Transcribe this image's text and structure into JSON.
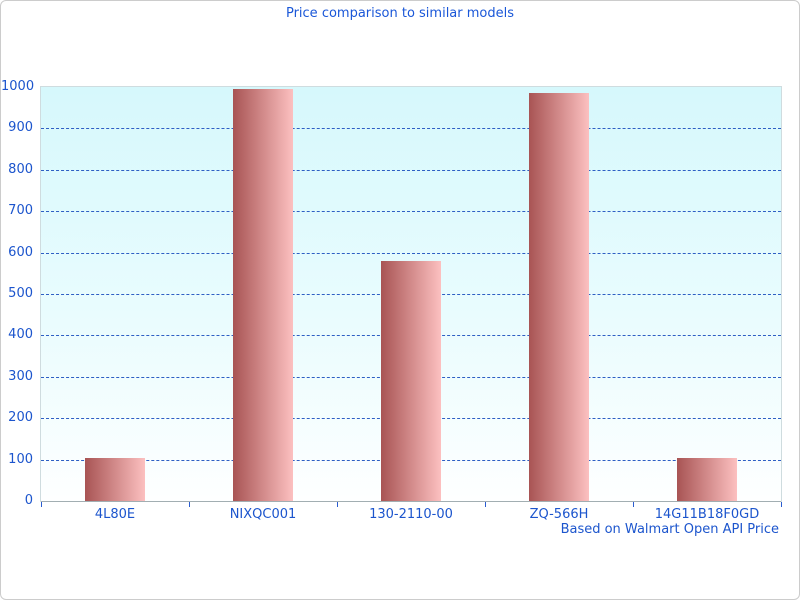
{
  "window": {
    "background": "#ffffff",
    "border_color": "#cccccc"
  },
  "chart_data": {
    "type": "bar",
    "title": "Price comparison to similar models",
    "caption": "Based on Walmart Open API Price",
    "xlabel": "",
    "ylabel": "",
    "categories": [
      "4L80E",
      "NIXQC001",
      "130-2110-00",
      "ZQ-566H",
      "14G11B18F0GD"
    ],
    "values": [
      105,
      995,
      580,
      985,
      105
    ],
    "ylim": [
      0,
      1000
    ],
    "ytick_interval": 100,
    "yticks": [
      0,
      100,
      200,
      300,
      400,
      500,
      600,
      700,
      800,
      900,
      1000
    ],
    "grid": "horizontal-dashed",
    "legend": "none",
    "colors": {
      "title_text": "#1a57d8",
      "axis_text": "#1c55cd",
      "gridline": "#2e5fc4",
      "tick": "#2a5cd0",
      "bar_gradient_left": "#a85454",
      "bar_gradient_right": "#fcc0c0",
      "plot_bg_top": "#d6f8fc",
      "plot_bg_bottom": "#feffff",
      "plot_border": "#cfdcdf",
      "axis_line": "#a2aeb2"
    }
  }
}
